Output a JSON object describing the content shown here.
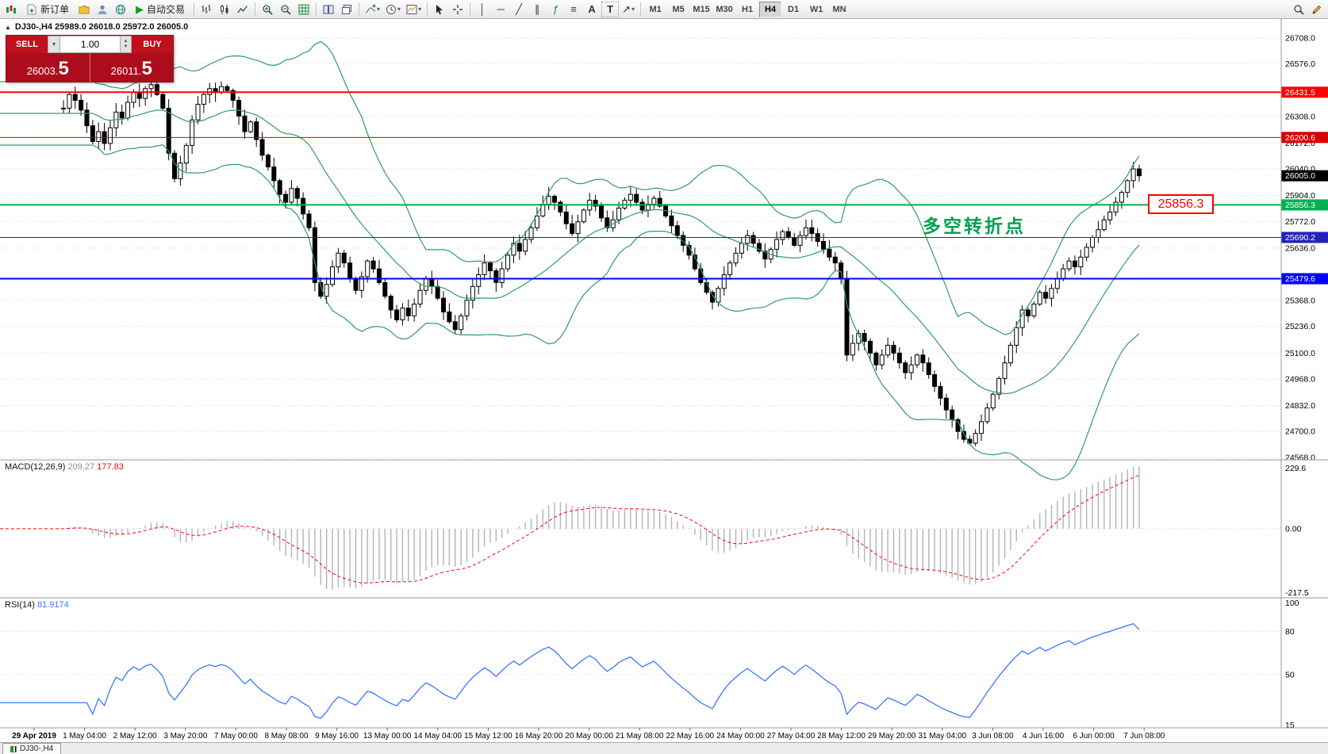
{
  "toolbar": {
    "new_order_label": "新订单",
    "auto_trading_label": "自动交易",
    "timeframes": [
      "M1",
      "M5",
      "M15",
      "M30",
      "H1",
      "H4",
      "D1",
      "W1",
      "MN"
    ],
    "active_timeframe": "H4",
    "text_tool_label": "A",
    "text_label_tool_label": "T"
  },
  "one_click": {
    "sell_label": "SELL",
    "buy_label": "BUY",
    "volume": "1.00",
    "sell_price_main": "26003.",
    "sell_price_big": "5",
    "buy_price_main": "26011.",
    "buy_price_big": "5"
  },
  "chart": {
    "header": "DJ30-,H4  25989.0 26018.0 25972.0 26005.0"
  },
  "indicators": {
    "macd_label": "MACD(12,26,9)",
    "macd_value": "209.27",
    "macd_signal": "177.83",
    "rsi_label": "RSI(14)",
    "rsi_value": "81.9174"
  },
  "annotations": {
    "turning_point": "多空转折点",
    "price_callout": "25856.3"
  },
  "tabbar": {
    "tab": "DJ30-,H4"
  },
  "colors": {
    "buy_sell_red": "#c0101e",
    "price_row_red": "#ad0c1c",
    "band_green": "#2f9e5f",
    "annotation_green": "#00a050",
    "rsi_blue": "#3a78ff",
    "macd_signal_red": "#ff0000",
    "histogram_gray": "#b4b4b4",
    "last_price_bg": "#000000"
  },
  "chart_data": {
    "type": "candlestick",
    "symbol": "DJ30-",
    "period": "H4",
    "ohlc_display": {
      "open": "25989.0",
      "high": "26018.0",
      "low": "25972.0",
      "close": "26005.0"
    },
    "price_axis": {
      "min": 24555,
      "max": 26805,
      "ticks": [
        26708.0,
        26576.0,
        26308.0,
        26172.0,
        26040.0,
        25904.0,
        25772.0,
        25636.0,
        25368.0,
        25236.0,
        25100.0,
        24968.0,
        24832.0,
        24700.0,
        24568.0
      ]
    },
    "first_open": 26350,
    "closes": [
      26350,
      26420,
      26390,
      26340,
      26260,
      26180,
      26230,
      26170,
      26250,
      26330,
      26300,
      26380,
      26430,
      26400,
      26450,
      26470,
      26420,
      26350,
      26120,
      25990,
      26070,
      26160,
      26290,
      26370,
      26420,
      26450,
      26430,
      26460,
      26440,
      26390,
      26310,
      26230,
      26280,
      26190,
      26110,
      26050,
      25980,
      25910,
      25870,
      25940,
      25890,
      25810,
      25740,
      25460,
      25390,
      25450,
      25540,
      25610,
      25560,
      25480,
      25420,
      25490,
      25570,
      25530,
      25460,
      25390,
      25320,
      25270,
      25330,
      25290,
      25350,
      25420,
      25480,
      25440,
      25380,
      25310,
      25260,
      25220,
      25290,
      25370,
      25440,
      25500,
      25560,
      25520,
      25460,
      25530,
      25600,
      25660,
      25620,
      25680,
      25740,
      25800,
      25860,
      25900,
      25870,
      25820,
      25760,
      25710,
      25770,
      25830,
      25880,
      25850,
      25790,
      25740,
      25780,
      25840,
      25880,
      25910,
      25870,
      25830,
      25860,
      25890,
      25850,
      25800,
      25750,
      25700,
      25650,
      25600,
      25530,
      25460,
      25410,
      25360,
      25430,
      25500,
      25560,
      25610,
      25660,
      25700,
      25660,
      25620,
      25580,
      25630,
      25680,
      25720,
      25690,
      25650,
      25700,
      25740,
      25710,
      25670,
      25630,
      25590,
      25560,
      25480,
      25090,
      25150,
      25200,
      25160,
      25100,
      25040,
      25090,
      25140,
      25100,
      25050,
      25000,
      25040,
      25090,
      25050,
      24990,
      24930,
      24870,
      24810,
      24760,
      24700,
      24660,
      24640,
      24690,
      24750,
      24820,
      24890,
      24970,
      25050,
      25140,
      25230,
      25320,
      25290,
      25350,
      25410,
      25380,
      25430,
      25480,
      25530,
      25570,
      25540,
      25590,
      25640,
      25690,
      25730,
      25780,
      25820,
      25870,
      25920,
      25980,
      26040,
      26005
    ],
    "bollinger": {
      "period": 20,
      "deviation": 2
    },
    "hlines": [
      {
        "value": 26431.5,
        "color": "#ff0000",
        "width": 2,
        "label": "26431.5"
      },
      {
        "value": 26200.6,
        "color": "#d40000",
        "width": 1,
        "label": "26200.6"
      },
      {
        "value": 25856.3,
        "color": "#00b050",
        "width": 2,
        "label": "25856.3"
      },
      {
        "value": 25690.2,
        "color": "#2222bb",
        "width": 1,
        "label": "25690.2"
      },
      {
        "value": 25479.6,
        "color": "#0000ff",
        "width": 2,
        "label": "25479.6"
      }
    ],
    "last_price": {
      "value": 26005.0,
      "label": "26005.0"
    },
    "macd": {
      "params": [
        12,
        26,
        9
      ],
      "value": 209.27,
      "signal": 177.83,
      "axis_labels": [
        "229.6",
        "0.00",
        "-217.5"
      ]
    },
    "rsi": {
      "period": 14,
      "value": 81.9174,
      "levels": [
        80,
        50
      ],
      "axis_labels": [
        {
          "v": 100,
          "t": "100"
        },
        {
          "v": 80,
          "t": "80"
        },
        {
          "v": 50,
          "t": "50"
        },
        {
          "v": 15,
          "t": "15"
        }
      ]
    },
    "time_axis": [
      "29 Apr 2019",
      "1 May 04:00",
      "2 May 12:00",
      "3 May 20:00",
      "7 May 00:00",
      "8 May 08:00",
      "9 May 16:00",
      "13 May 00:00",
      "14 May 04:00",
      "15 May 12:00",
      "16 May 20:00",
      "20 May 00:00",
      "21 May 08:00",
      "22 May 16:00",
      "24 May 00:00",
      "27 May 04:00",
      "28 May 12:00",
      "29 May 20:00",
      "31 May 04:00",
      "3 Jun 08:00",
      "4 Jun 16:00",
      "6 Jun 00:00",
      "7 Jun 08:00"
    ]
  }
}
